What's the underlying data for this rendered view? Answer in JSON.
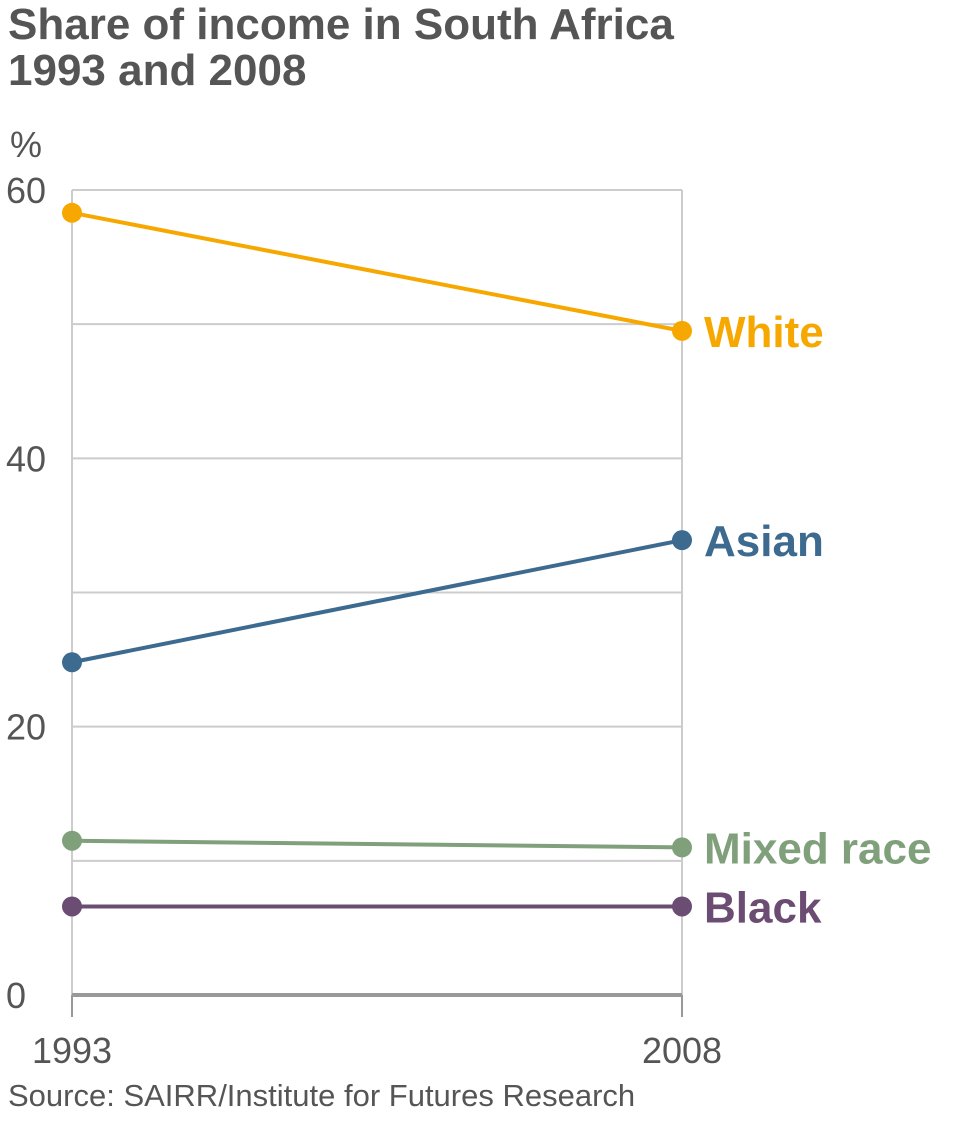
{
  "title_line1": "Share of income in South Africa",
  "title_line2": "1993 and 2008",
  "source": "Source: SAIRR/Institute for Futures Research",
  "chart_data": {
    "type": "line",
    "title": "Share of income in South Africa 1993 and 2008",
    "ylabel": "%",
    "xlabel": "",
    "x": [
      "1993",
      "2008"
    ],
    "ylim": [
      0,
      60
    ],
    "yticks": [
      "0",
      "20",
      "40",
      "60"
    ],
    "grid": true,
    "gridlines": [
      10,
      20,
      30,
      40,
      50,
      60
    ],
    "legend": "end-of-line labels",
    "series": [
      {
        "name": "White",
        "values": [
          58.3,
          49.5
        ],
        "color": "#f7a800"
      },
      {
        "name": "Asian",
        "values": [
          24.8,
          33.9
        ],
        "color": "#3d6a8f"
      },
      {
        "name": "Mixed race",
        "values": [
          11.5,
          11.0
        ],
        "color": "#7fa07a"
      },
      {
        "name": "Black",
        "values": [
          6.6,
          6.6
        ],
        "color": "#6b4c72"
      }
    ]
  }
}
